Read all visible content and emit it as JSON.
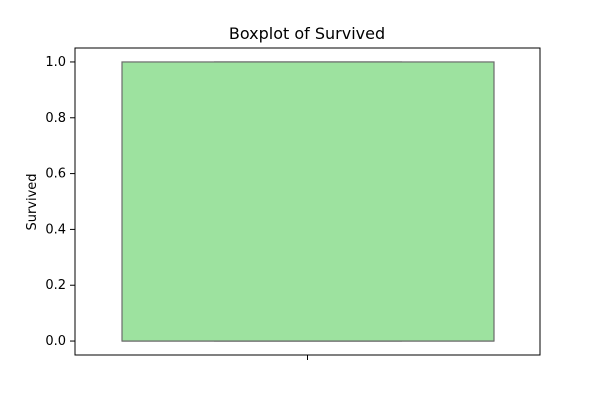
{
  "chart_data": {
    "type": "box",
    "title": "Boxplot of Survived",
    "xlabel": "",
    "ylabel": "Survived",
    "ylim": [
      -0.05,
      1.05
    ],
    "yticks": [
      0.0,
      0.2,
      0.4,
      0.6,
      0.8,
      1.0
    ],
    "ytick_labels": [
      "0.0",
      "0.2",
      "0.4",
      "0.6",
      "0.8",
      "1.0"
    ],
    "xticks": [
      ""
    ],
    "grid": false,
    "series": [
      {
        "min": 0.0,
        "q1": 0.0,
        "median": 0.0,
        "q3": 1.0,
        "max": 1.0,
        "fill_color": "#9de29f",
        "edge_color": "#6b6b6b"
      }
    ]
  }
}
